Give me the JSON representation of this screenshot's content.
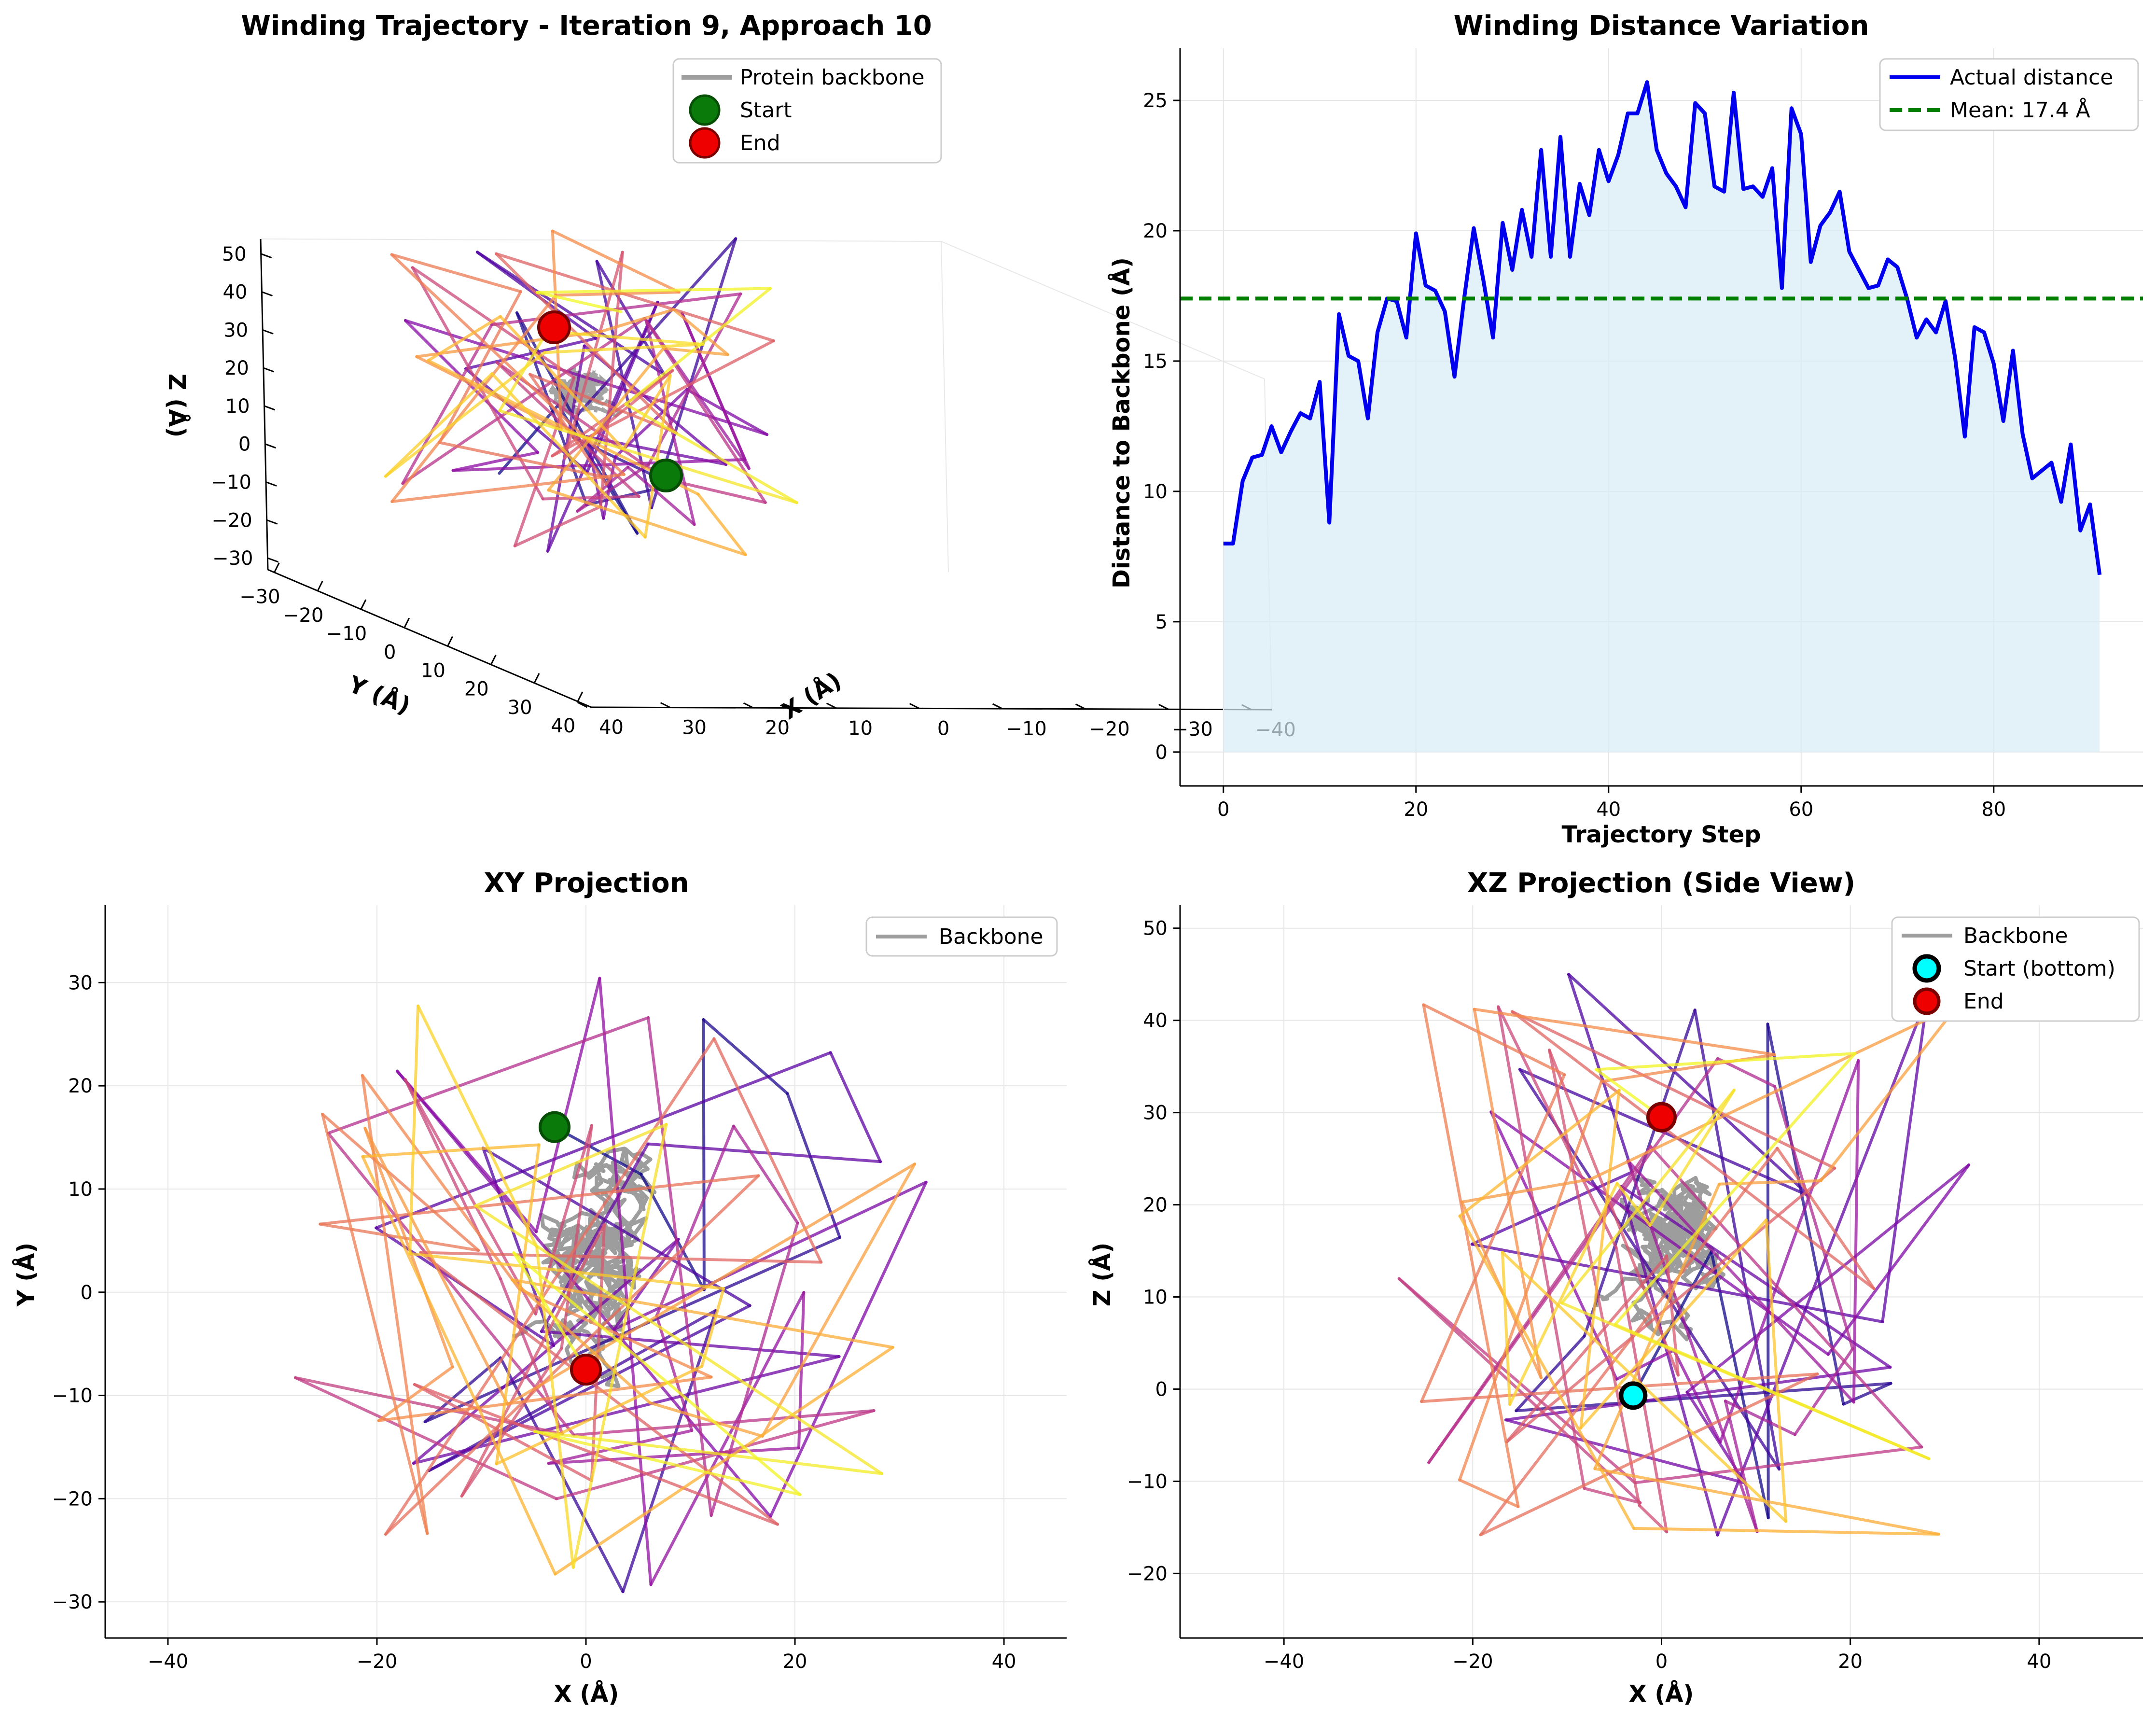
{
  "chart_data": [
    {
      "type": "line",
      "subtype": "3d-trajectory",
      "title": "Winding Trajectory - Iteration 9, Approach 10",
      "xlabel": "X (Å)",
      "ylabel": "Y (Å)",
      "zlabel": "Z (Å)",
      "x_ticks": [
        "−40",
        "−30",
        "−20",
        "−10",
        "0",
        "10",
        "20",
        "30",
        "40"
      ],
      "y_ticks": [
        "−30",
        "−20",
        "−10",
        "0",
        "10",
        "20",
        "30",
        "40"
      ],
      "z_ticks": [
        "−30",
        "−20",
        "−10",
        "0",
        "10",
        "20",
        "30",
        "40",
        "50"
      ],
      "legend": [
        {
          "label": "Protein backbone",
          "marker": "line",
          "color": "#9e9e9e"
        },
        {
          "label": "Start",
          "marker": "circle",
          "color": "#0a7a0a"
        },
        {
          "label": "End",
          "marker": "circle",
          "color": "#ee0000"
        }
      ],
      "legend_position": "top-right",
      "grid": false,
      "colormap": "plasma"
    },
    {
      "type": "area",
      "title": "Winding Distance Variation",
      "xlabel": "Trajectory Step",
      "ylabel": "Distance to Backbone (Å)",
      "xlim": [
        -4.5,
        95.5
      ],
      "ylim": [
        -1.3,
        27
      ],
      "x_ticks": [
        0,
        20,
        40,
        60,
        80
      ],
      "y_ticks": [
        0,
        5,
        10,
        15,
        20,
        25
      ],
      "grid": true,
      "legend_position": "top-right",
      "series": [
        {
          "name": "Actual distance",
          "color": "#0000ee",
          "values": [
            8.0,
            8.0,
            10.4,
            11.3,
            11.4,
            12.5,
            11.5,
            12.3,
            13.0,
            12.8,
            14.2,
            8.8,
            16.8,
            15.2,
            15.0,
            12.8,
            16.1,
            17.4,
            17.3,
            15.9,
            19.9,
            17.9,
            17.7,
            16.9,
            14.4,
            17.4,
            20.1,
            18.1,
            15.9,
            20.3,
            18.5,
            20.8,
            19.0,
            23.1,
            19.0,
            23.6,
            19.0,
            21.8,
            20.6,
            23.1,
            21.9,
            22.9,
            24.5,
            24.5,
            25.7,
            23.1,
            22.2,
            21.7,
            20.9,
            24.9,
            24.5,
            21.7,
            21.5,
            25.3,
            21.6,
            21.7,
            21.3,
            22.4,
            17.8,
            24.7,
            23.7,
            18.8,
            20.2,
            20.7,
            21.5,
            19.2,
            18.5,
            17.8,
            17.9,
            18.9,
            18.6,
            17.4,
            15.9,
            16.6,
            16.1,
            17.3,
            15.1,
            12.1,
            16.3,
            16.1,
            14.9,
            12.7,
            15.4,
            12.2,
            10.5,
            10.8,
            11.1,
            9.6,
            11.8,
            8.5,
            9.5,
            6.8
          ]
        }
      ],
      "mean": {
        "name": "Mean: 17.4 Å",
        "value": 17.4,
        "color": "#007f00"
      },
      "fill_color": "#d6ecf5"
    },
    {
      "type": "line",
      "subtype": "projection",
      "title": "XY Projection",
      "xlabel": "X (Å)",
      "ylabel": "Y (Å)",
      "xlim": [
        -46,
        46
      ],
      "ylim": [
        -33.5,
        37.5
      ],
      "x_ticks": [
        -40,
        -20,
        0,
        20,
        40
      ],
      "y_ticks": [
        -30,
        -20,
        -10,
        0,
        10,
        20,
        30
      ],
      "grid": true,
      "legend_position": "top-right",
      "legend": [
        {
          "label": "Backbone",
          "marker": "line",
          "color": "#9e9e9e"
        }
      ],
      "start": {
        "x": -3,
        "y": 16
      },
      "end": {
        "x": 0,
        "y": -7.5
      },
      "colormap": "plasma"
    },
    {
      "type": "line",
      "subtype": "projection",
      "title": "XZ Projection (Side View)",
      "xlabel": "X (Å)",
      "ylabel": "Z (Å)",
      "xlim": [
        -51,
        51
      ],
      "ylim": [
        -27,
        52.5
      ],
      "x_ticks": [
        -40,
        -20,
        0,
        20,
        40
      ],
      "y_ticks": [
        -20,
        -10,
        0,
        10,
        20,
        30,
        40,
        50
      ],
      "grid": true,
      "legend_position": "top-right",
      "legend": [
        {
          "label": "Backbone",
          "marker": "line",
          "color": "#9e9e9e"
        },
        {
          "label": "Start (bottom)",
          "marker": "circle",
          "color": "#00ffff"
        },
        {
          "label": "End",
          "marker": "circle",
          "color": "#ee0000"
        }
      ],
      "start": {
        "x": -3,
        "z": -0.7
      },
      "end": {
        "x": 0,
        "z": 29.5
      },
      "colormap": "plasma"
    }
  ]
}
